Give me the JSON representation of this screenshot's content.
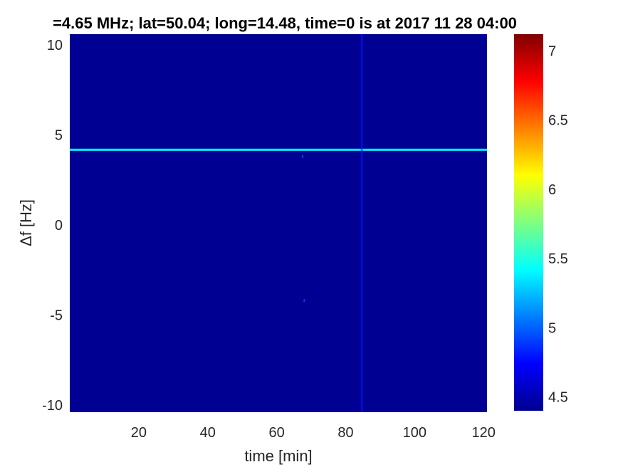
{
  "chart_data": {
    "type": "heatmap",
    "title": "=4.65 MHz;  lat=50.04; long=14.48, time=0 is at 2017 11 28 04:00",
    "xlabel": "time [min]",
    "ylabel": "Δf [Hz]",
    "xlim": [
      0,
      121
    ],
    "ylim": [
      -10.4,
      10.6
    ],
    "xticks": [
      "20",
      "40",
      "60",
      "80",
      "100",
      "120"
    ],
    "xtick_values": [
      20,
      40,
      60,
      80,
      100,
      120
    ],
    "yticks": [
      "-10",
      "-5",
      "0",
      "5",
      "10"
    ],
    "ytick_values": [
      -10,
      -5,
      0,
      5,
      10
    ],
    "colormap": "jet",
    "colorbar": {
      "clim": [
        4.4,
        7.12
      ],
      "ticks": [
        "4.5",
        "5",
        "5.5",
        "6",
        "6.5",
        "7"
      ],
      "tick_values": [
        4.5,
        5,
        5.5,
        6,
        6.5,
        7
      ]
    },
    "background_value": 4.45,
    "features": [
      {
        "kind": "horizontal-line",
        "delta_f": 4.18,
        "time_range": [
          0,
          121
        ],
        "value": 5.4
      },
      {
        "kind": "vertical-line",
        "time": 84.7,
        "delta_f_range": [
          -10.4,
          10.6
        ],
        "value": 4.8
      },
      {
        "kind": "dot",
        "time": 67.5,
        "delta_f": 3.8,
        "value": 4.9
      },
      {
        "kind": "dot",
        "time": 68,
        "delta_f": -4.2,
        "value": 4.9
      }
    ]
  }
}
